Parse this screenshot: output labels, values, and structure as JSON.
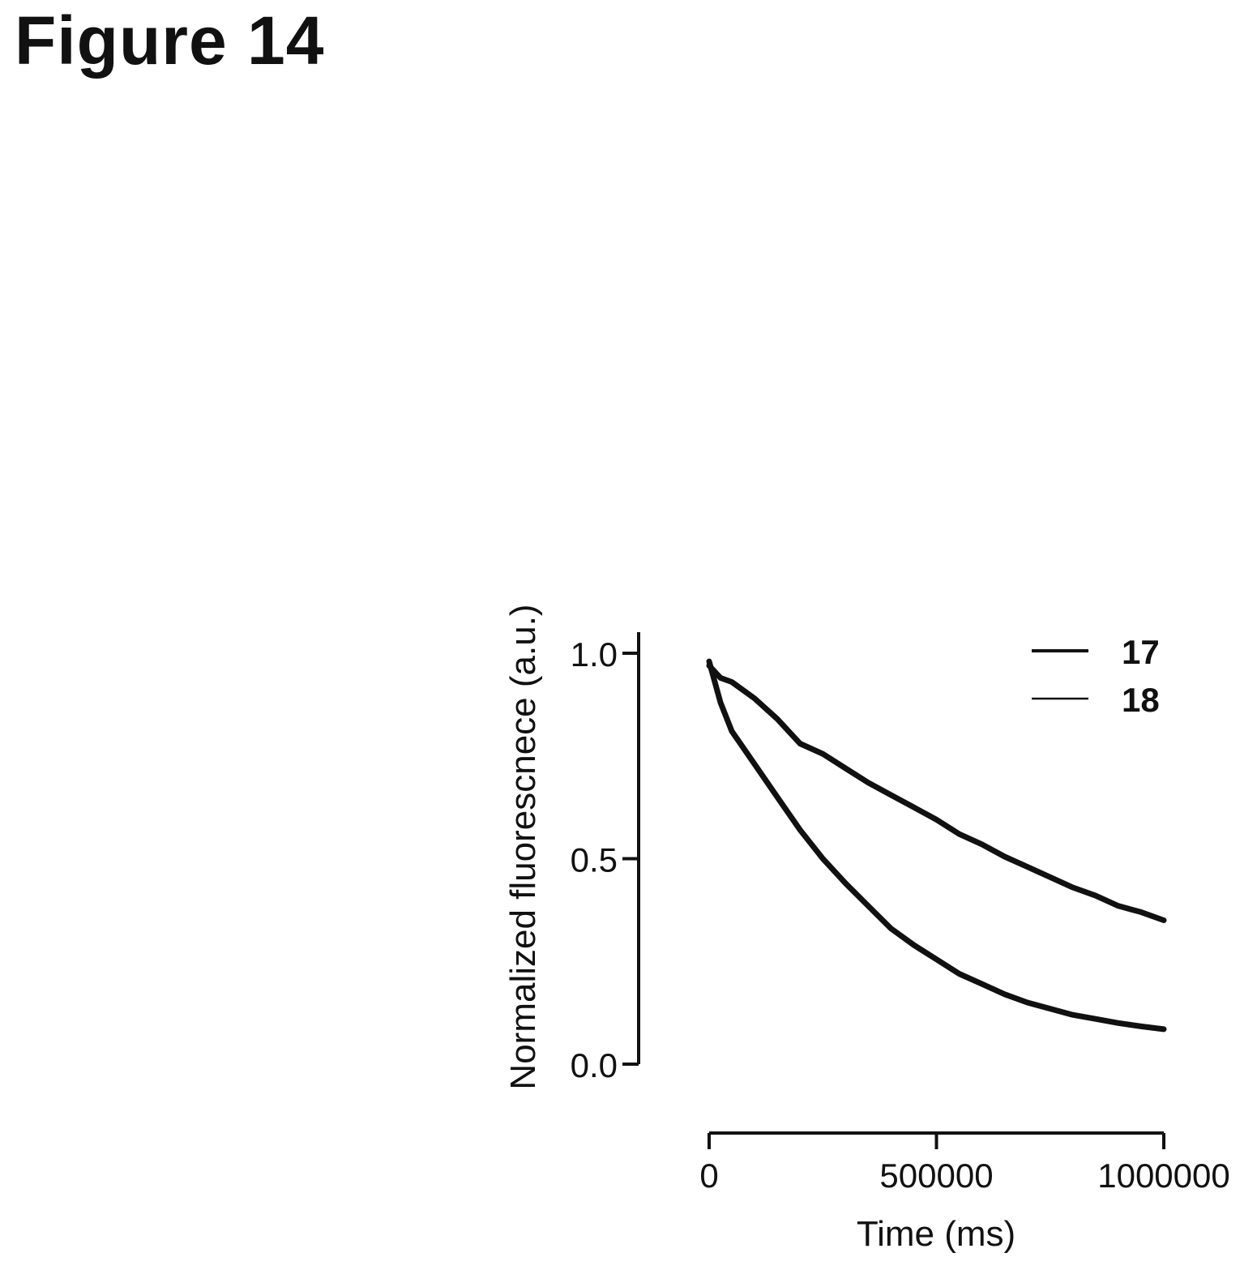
{
  "figure": {
    "title": "Figure 14"
  },
  "chart_data": {
    "type": "line",
    "title": "",
    "xlabel": "Time (ms)",
    "ylabel": "Normalized fluorescnece (a.u.)",
    "xlim": [
      0,
      1000000
    ],
    "ylim": [
      0.0,
      1.0
    ],
    "xticks": [
      0,
      500000,
      1000000
    ],
    "xtick_labels": [
      "0",
      "500000",
      "1000000"
    ],
    "yticks": [
      0.0,
      0.5,
      1.0
    ],
    "ytick_labels": [
      "0.0",
      "0.5",
      "1.0"
    ],
    "grid": false,
    "legend": "top-right",
    "series": [
      {
        "name": "17",
        "x": [
          0,
          25000,
          50000,
          100000,
          150000,
          200000,
          250000,
          300000,
          350000,
          400000,
          450000,
          500000,
          550000,
          600000,
          650000,
          700000,
          750000,
          800000,
          850000,
          900000,
          950000,
          1000000
        ],
        "y": [
          0.97,
          0.94,
          0.93,
          0.89,
          0.84,
          0.78,
          0.755,
          0.72,
          0.685,
          0.655,
          0.625,
          0.595,
          0.56,
          0.535,
          0.505,
          0.48,
          0.455,
          0.43,
          0.41,
          0.385,
          0.37,
          0.35
        ]
      },
      {
        "name": "18",
        "x": [
          0,
          25000,
          50000,
          100000,
          150000,
          200000,
          250000,
          300000,
          350000,
          400000,
          450000,
          500000,
          550000,
          600000,
          650000,
          700000,
          750000,
          800000,
          850000,
          900000,
          950000,
          1000000
        ],
        "y": [
          0.98,
          0.88,
          0.81,
          0.73,
          0.65,
          0.57,
          0.5,
          0.44,
          0.385,
          0.33,
          0.29,
          0.255,
          0.22,
          0.195,
          0.17,
          0.15,
          0.135,
          0.12,
          0.11,
          0.1,
          0.092,
          0.085
        ]
      }
    ],
    "colors": {
      "line": "#111111",
      "axis": "#111111"
    }
  }
}
